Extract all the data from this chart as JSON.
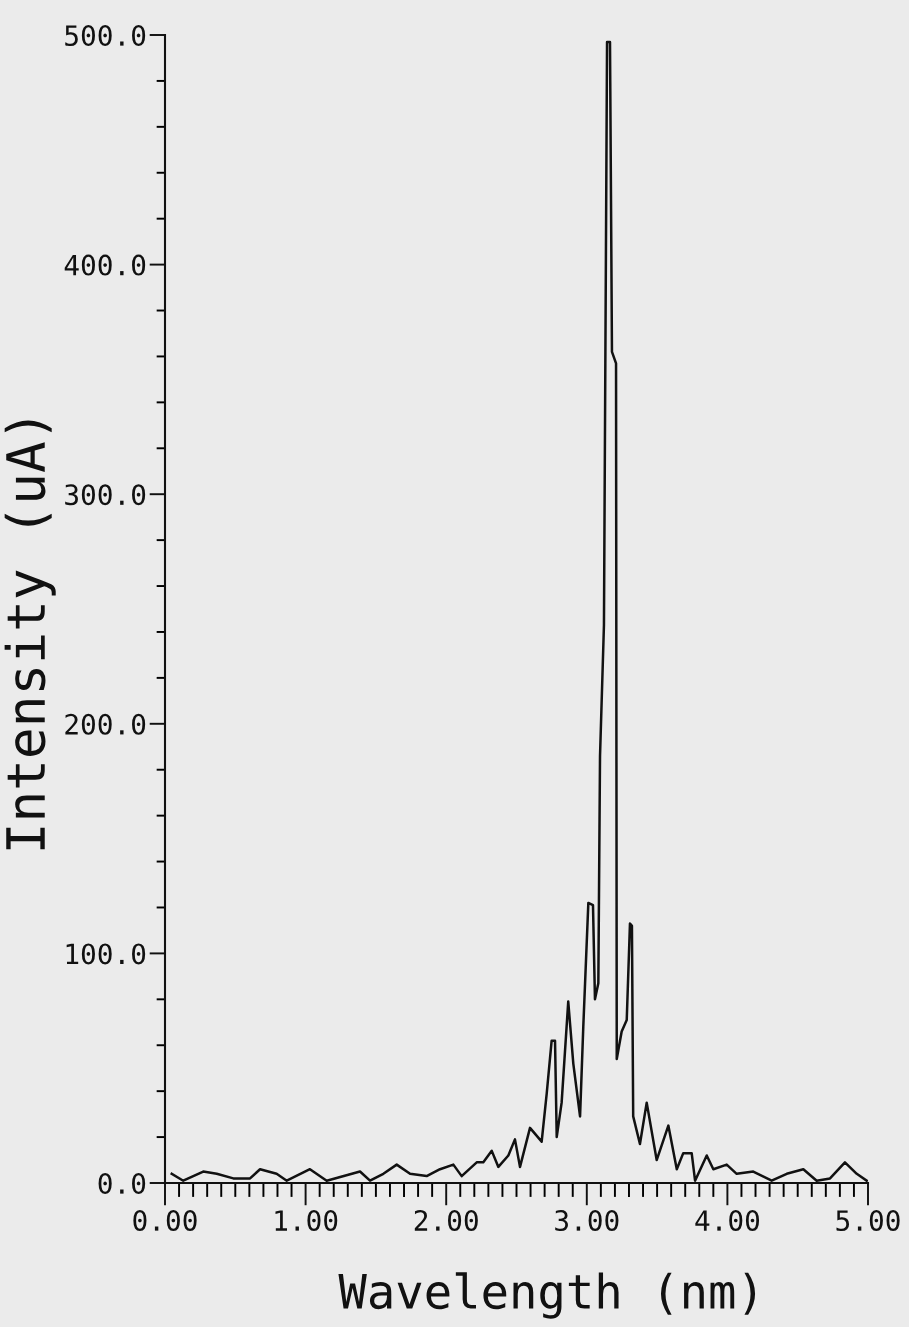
{
  "chart_data": {
    "type": "line",
    "xlabel": "Wavelength (nm)",
    "ylabel": "Intensity (uA)",
    "x": [
      0.048,
      0.13,
      0.272,
      0.368,
      0.486,
      0.605,
      0.676,
      0.794,
      0.866,
      1.031,
      1.15,
      1.387,
      1.458,
      1.553,
      1.648,
      1.743,
      1.861,
      1.956,
      2.051,
      2.11,
      2.217,
      2.264,
      2.324,
      2.371,
      2.442,
      2.489,
      2.525,
      2.596,
      2.679,
      2.715,
      2.75,
      2.774,
      2.786,
      2.821,
      2.868,
      2.904,
      2.952,
      2.975,
      3.011,
      3.044,
      3.058,
      3.082,
      3.094,
      3.122,
      3.144,
      3.165,
      3.179,
      3.208,
      3.213,
      3.248,
      3.284,
      3.307,
      3.321,
      3.33,
      3.378,
      3.426,
      3.497,
      3.58,
      3.64,
      3.686,
      3.746,
      3.77,
      3.853,
      3.9,
      3.995,
      4.066,
      4.184,
      4.315,
      4.422,
      4.54,
      4.635,
      4.73,
      4.836,
      4.92,
      4.991
    ],
    "series": [
      {
        "color": "#111111",
        "values": [
          4,
          1,
          5,
          4,
          2,
          2,
          6,
          4,
          1,
          6,
          1,
          5,
          1,
          4,
          8,
          4,
          3,
          6,
          8,
          3,
          9,
          9,
          14,
          7,
          12,
          19,
          7,
          24,
          18,
          39,
          62,
          62,
          20,
          35,
          79,
          52,
          29,
          68,
          122,
          121,
          80,
          87,
          186,
          243,
          497,
          497,
          362,
          357,
          54,
          66,
          71,
          113,
          112,
          29,
          17,
          35,
          10,
          25,
          6,
          13,
          13,
          1,
          12,
          6,
          8,
          4,
          5,
          1,
          4,
          6,
          1,
          2,
          9,
          4,
          1
        ]
      }
    ],
    "xlim": [
      0,
      5
    ],
    "ylim": [
      0,
      500
    ],
    "xticks": [
      {
        "value": 0,
        "label": "0.00"
      },
      {
        "value": 0.1,
        "label": null
      },
      {
        "value": 0.2,
        "label": null
      },
      {
        "value": 0.3,
        "label": null
      },
      {
        "value": 0.4,
        "label": null
      },
      {
        "value": 0.5,
        "label": null
      },
      {
        "value": 0.6,
        "label": null
      },
      {
        "value": 0.7,
        "label": null
      },
      {
        "value": 0.8,
        "label": null
      },
      {
        "value": 0.9,
        "label": null
      },
      {
        "value": 1,
        "label": "1.00"
      },
      {
        "value": 1.1,
        "label": null
      },
      {
        "value": 1.2,
        "label": null
      },
      {
        "value": 1.3,
        "label": null
      },
      {
        "value": 1.4,
        "label": null
      },
      {
        "value": 1.5,
        "label": null
      },
      {
        "value": 1.6,
        "label": null
      },
      {
        "value": 1.7,
        "label": null
      },
      {
        "value": 1.8,
        "label": null
      },
      {
        "value": 1.9,
        "label": null
      },
      {
        "value": 2,
        "label": "2.00"
      },
      {
        "value": 2.1,
        "label": null
      },
      {
        "value": 2.2,
        "label": null
      },
      {
        "value": 2.3,
        "label": null
      },
      {
        "value": 2.4,
        "label": null
      },
      {
        "value": 2.5,
        "label": null
      },
      {
        "value": 2.6,
        "label": null
      },
      {
        "value": 2.7,
        "label": null
      },
      {
        "value": 2.8,
        "label": null
      },
      {
        "value": 2.9,
        "label": null
      },
      {
        "value": 3,
        "label": "3.00"
      },
      {
        "value": 3.1,
        "label": null
      },
      {
        "value": 3.2,
        "label": null
      },
      {
        "value": 3.3,
        "label": null
      },
      {
        "value": 3.4,
        "label": null
      },
      {
        "value": 3.5,
        "label": null
      },
      {
        "value": 3.6,
        "label": null
      },
      {
        "value": 3.7,
        "label": null
      },
      {
        "value": 3.8,
        "label": null
      },
      {
        "value": 3.9,
        "label": null
      },
      {
        "value": 4,
        "label": "4.00"
      },
      {
        "value": 4.1,
        "label": null
      },
      {
        "value": 4.2,
        "label": null
      },
      {
        "value": 4.3,
        "label": null
      },
      {
        "value": 4.4,
        "label": null
      },
      {
        "value": 4.5,
        "label": null
      },
      {
        "value": 4.6,
        "label": null
      },
      {
        "value": 4.7,
        "label": null
      },
      {
        "value": 4.8,
        "label": null
      },
      {
        "value": 4.9,
        "label": null
      },
      {
        "value": 5,
        "label": "5.00"
      }
    ],
    "yticks": [
      {
        "value": 0,
        "label": "0.0"
      },
      {
        "value": 20,
        "label": null
      },
      {
        "value": 40,
        "label": null
      },
      {
        "value": 60,
        "label": null
      },
      {
        "value": 80,
        "label": null
      },
      {
        "value": 100,
        "label": "100.0"
      },
      {
        "value": 120,
        "label": null
      },
      {
        "value": 140,
        "label": null
      },
      {
        "value": 160,
        "label": null
      },
      {
        "value": 180,
        "label": null
      },
      {
        "value": 200,
        "label": "200.0"
      },
      {
        "value": 220,
        "label": null
      },
      {
        "value": 240,
        "label": null
      },
      {
        "value": 260,
        "label": null
      },
      {
        "value": 280,
        "label": null
      },
      {
        "value": 300,
        "label": "300.0"
      },
      {
        "value": 320,
        "label": null
      },
      {
        "value": 340,
        "label": null
      },
      {
        "value": 360,
        "label": null
      },
      {
        "value": 380,
        "label": null
      },
      {
        "value": 400,
        "label": "400.0"
      },
      {
        "value": 420,
        "label": null
      },
      {
        "value": 440,
        "label": null
      },
      {
        "value": 460,
        "label": null
      },
      {
        "value": 480,
        "label": null
      },
      {
        "value": 500,
        "label": "500.0"
      }
    ],
    "grid": false,
    "marker": "none",
    "line_style": "solid"
  }
}
